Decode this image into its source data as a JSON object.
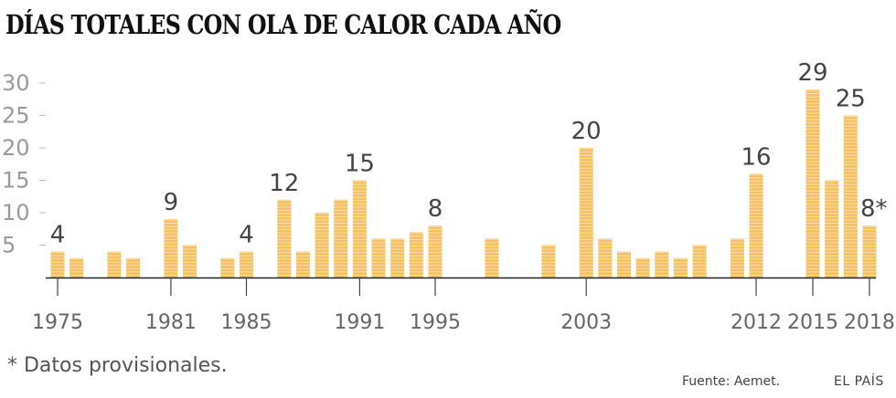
{
  "chart_data": {
    "type": "bar",
    "title": "DÍAS TOTALES CON OLA DE CALOR CADA AÑO",
    "x": [
      1975,
      1976,
      1978,
      1979,
      1981,
      1982,
      1984,
      1985,
      1987,
      1988,
      1989,
      1990,
      1991,
      1992,
      1993,
      1994,
      1995,
      1998,
      2001,
      2003,
      2004,
      2005,
      2006,
      2007,
      2008,
      2009,
      2011,
      2012,
      2015,
      2016,
      2017,
      2018
    ],
    "values": [
      4,
      3,
      4,
      3,
      9,
      5,
      3,
      4,
      12,
      4,
      10,
      12,
      15,
      6,
      6,
      7,
      8,
      6,
      5,
      20,
      6,
      4,
      3,
      4,
      3,
      5,
      6,
      16,
      29,
      15,
      25,
      8
    ],
    "xlim": [
      1975,
      2018
    ],
    "ylim": [
      0,
      30
    ],
    "yticks": [
      5,
      10,
      15,
      20,
      25,
      30
    ],
    "xticks": [
      1975,
      1981,
      1985,
      1991,
      1995,
      2003,
      2012,
      2015,
      2018
    ],
    "data_labels": [
      {
        "year": 1975,
        "text": "4"
      },
      {
        "year": 1981,
        "text": "9"
      },
      {
        "year": 1985,
        "text": "4"
      },
      {
        "year": 1987,
        "text": "12"
      },
      {
        "year": 1991,
        "text": "15"
      },
      {
        "year": 1995,
        "text": "8"
      },
      {
        "year": 2003,
        "text": "20"
      },
      {
        "year": 2012,
        "text": "16"
      },
      {
        "year": 2015,
        "text": "29"
      },
      {
        "year": 2017,
        "text": "25"
      },
      {
        "year": 2018,
        "text": "8*"
      }
    ],
    "bar_color": "#F5C060",
    "xlabel": "",
    "ylabel": ""
  },
  "footnote": "* Datos provisionales.",
  "source": "Fuente: Aemet.",
  "brand": "EL PAÍS"
}
